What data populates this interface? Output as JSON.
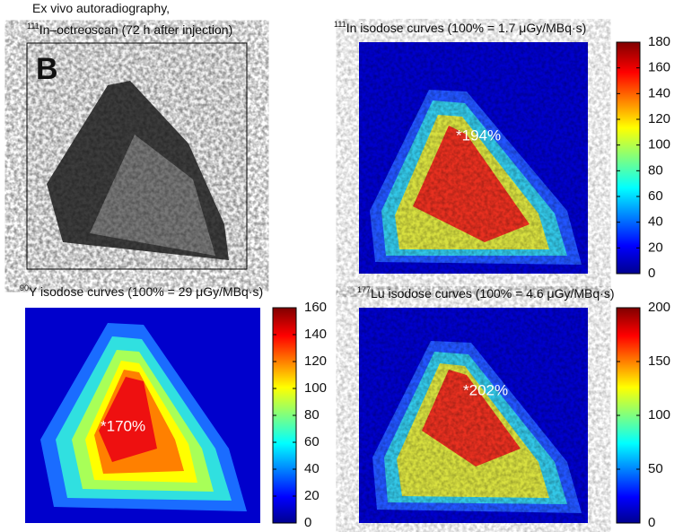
{
  "panels": [
    {
      "title_line1": "Ex vivo autoradiography,",
      "title_sup": "111",
      "title_line2": "In–octreoscan (72 h after injection)",
      "label": "B"
    },
    {
      "title_sup": "111",
      "title": "In isodose curves (100% = 1.7 μGy/MBq·s)",
      "annotation": "*194%",
      "clim": [
        0,
        180
      ],
      "ticks": [
        0,
        20,
        40,
        60,
        80,
        100,
        120,
        140,
        160,
        180
      ]
    },
    {
      "title_sup": "90",
      "title": "Y isodose curves (100% = 29 μGy/MBq·s)",
      "annotation": "*170%",
      "clim": [
        0,
        160
      ],
      "ticks": [
        0,
        20,
        40,
        60,
        80,
        100,
        120,
        140,
        160
      ]
    },
    {
      "title_sup": "177",
      "title": "Lu isodose curves (100% = 4.6 μGy/MBq·s)",
      "annotation": "*202%",
      "clim": [
        0,
        200
      ],
      "ticks": [
        0,
        50,
        100,
        150,
        200
      ]
    }
  ]
}
